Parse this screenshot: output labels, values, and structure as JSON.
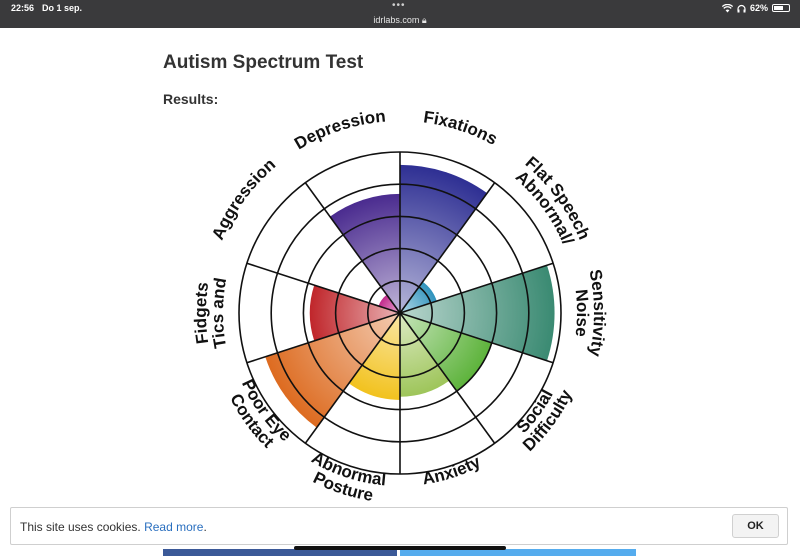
{
  "status_bar": {
    "time": "22:56",
    "date": "Do 1 sep.",
    "url": "idrlabs.com",
    "battery": "62%",
    "battery_level": 0.62,
    "icons": [
      "wifi-icon",
      "headphones-icon",
      "battery-icon",
      "lock-icon"
    ]
  },
  "page": {
    "title": "Autism Spectrum Test",
    "results_label": "Results:"
  },
  "chart_data": {
    "type": "polar-area",
    "scale_max": 5,
    "grid_rings": 5,
    "categories": [
      {
        "name": "Fixations",
        "lines": [
          "Fixations"
        ],
        "value": 4.6,
        "color": "#2e2f93"
      },
      {
        "name": "Abnormal/Flat Speech",
        "lines": [
          "Abnormal/",
          "Flat Speech"
        ],
        "value": 1.2,
        "color": "#2f93bd"
      },
      {
        "name": "Noise Sensitivity",
        "lines": [
          "Noise",
          "Sensitivity"
        ],
        "value": 4.8,
        "color": "#3a8a72"
      },
      {
        "name": "Social Difficulty",
        "lines": [
          "Social",
          "Difficulty"
        ],
        "value": 3.0,
        "color": "#5db33b"
      },
      {
        "name": "Anxiety",
        "lines": [
          "Anxiety"
        ],
        "value": 2.6,
        "color": "#9ec55a"
      },
      {
        "name": "Abnormal Posture",
        "lines": [
          "Abnormal",
          "Posture"
        ],
        "value": 0.0,
        "color": "#3a6fb6"
      },
      {
        "name": "Poor Eye Contact",
        "lines": [
          "Poor Eye",
          "Contact"
        ],
        "value": 4.4,
        "color": "#dd6b20"
      },
      {
        "name": "Tics and Fidgets",
        "lines": [
          "Tics and",
          "Fidgets"
        ],
        "value": 2.8,
        "color": "#c0262b"
      },
      {
        "name": "Aggression",
        "lines": [
          "Aggression"
        ],
        "value": 0.0,
        "color": "#8b8b8b"
      },
      {
        "name": "Depression",
        "lines": [
          "Depression"
        ],
        "value": 3.7,
        "color": "#4a2b8f"
      }
    ],
    "center_segments": [
      {
        "category": "Abnormal Posture",
        "value": 2.7,
        "color": "#f2c21e"
      },
      {
        "category": "Aggression",
        "value": 0.7,
        "color": "#c22a8c"
      }
    ]
  },
  "cookie_banner": {
    "text": "This site uses cookies. ",
    "link": "Read more",
    "suffix": ".",
    "ok_label": "OK"
  }
}
